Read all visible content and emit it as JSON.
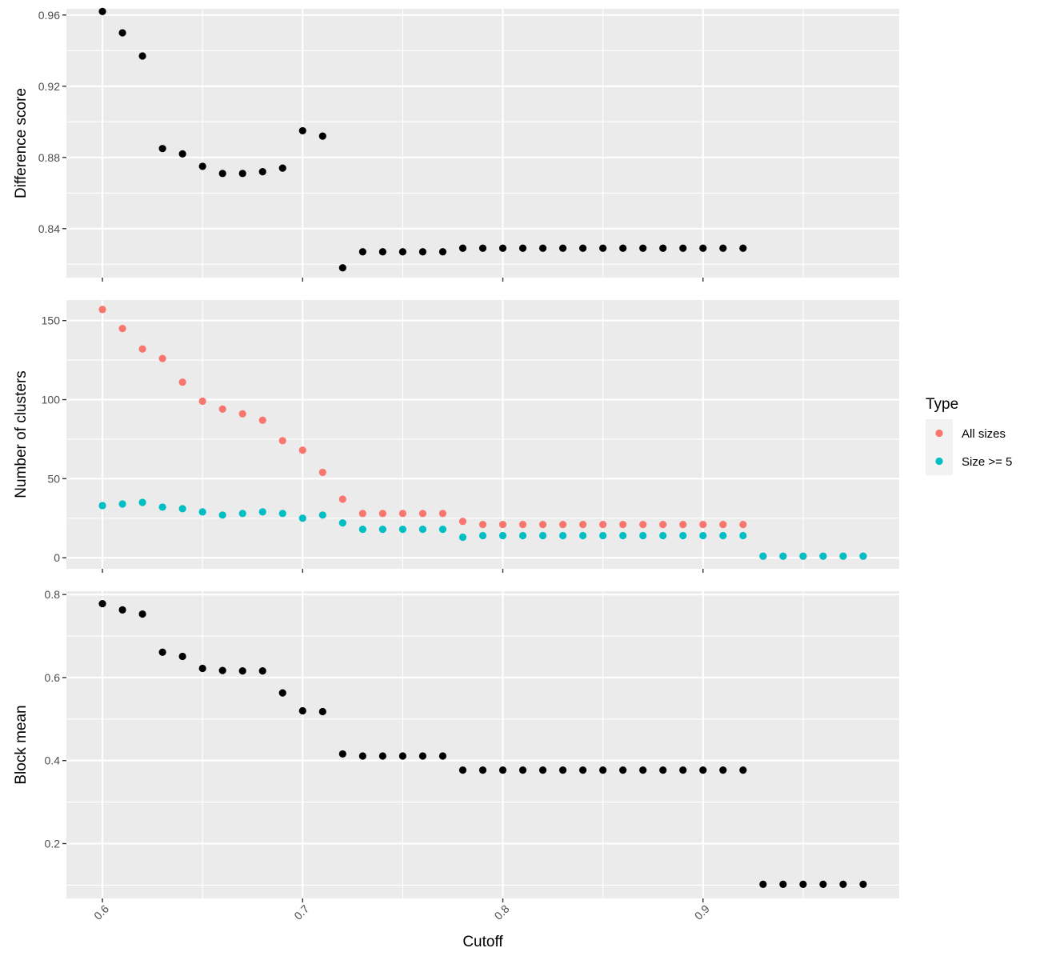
{
  "chart_data": {
    "type": "scatter",
    "xlabel": "Cutoff",
    "x_ticks": [
      "0.6",
      "0.7",
      "0.8",
      "0.9"
    ],
    "x_tick_values": [
      0.6,
      0.7,
      0.8,
      0.9
    ],
    "xlim": [
      0.582,
      0.998
    ],
    "grid": true,
    "legend_position": "right",
    "legend": {
      "title": "Type",
      "entries": [
        {
          "name": "All sizes",
          "color": "#F8766D"
        },
        {
          "name": "Size >= 5",
          "color": "#00BFC4"
        }
      ]
    },
    "panels": [
      {
        "ylabel": "Difference score",
        "ylim": [
          0.8125,
          0.9635
        ],
        "y_ticks": [
          "0.84",
          "0.88",
          "0.92",
          "0.96"
        ],
        "y_tick_values": [
          0.84,
          0.88,
          0.92,
          0.96
        ],
        "series": [
          {
            "color": "#000000",
            "points": [
              [
                0.6,
                0.962
              ],
              [
                0.61,
                0.95
              ],
              [
                0.62,
                0.937
              ],
              [
                0.63,
                0.885
              ],
              [
                0.64,
                0.882
              ],
              [
                0.65,
                0.875
              ],
              [
                0.66,
                0.871
              ],
              [
                0.67,
                0.871
              ],
              [
                0.68,
                0.872
              ],
              [
                0.69,
                0.874
              ],
              [
                0.7,
                0.895
              ],
              [
                0.71,
                0.892
              ],
              [
                0.72,
                0.818
              ],
              [
                0.73,
                0.827
              ],
              [
                0.74,
                0.827
              ],
              [
                0.75,
                0.827
              ],
              [
                0.76,
                0.827
              ],
              [
                0.77,
                0.827
              ],
              [
                0.78,
                0.829
              ],
              [
                0.79,
                0.829
              ],
              [
                0.8,
                0.829
              ],
              [
                0.81,
                0.829
              ],
              [
                0.82,
                0.829
              ],
              [
                0.83,
                0.829
              ],
              [
                0.84,
                0.829
              ],
              [
                0.85,
                0.829
              ],
              [
                0.86,
                0.829
              ],
              [
                0.87,
                0.829
              ],
              [
                0.88,
                0.829
              ],
              [
                0.89,
                0.829
              ],
              [
                0.9,
                0.829
              ],
              [
                0.91,
                0.829
              ],
              [
                0.92,
                0.829
              ]
            ]
          }
        ]
      },
      {
        "ylabel": "Number of clusters",
        "ylim": [
          -7,
          163
        ],
        "y_ticks": [
          "0",
          "50",
          "100",
          "150"
        ],
        "y_tick_values": [
          0,
          50,
          100,
          150
        ],
        "series": [
          {
            "name": "All sizes",
            "color": "#F8766D",
            "points": [
              [
                0.6,
                157
              ],
              [
                0.61,
                145
              ],
              [
                0.62,
                132
              ],
              [
                0.63,
                126
              ],
              [
                0.64,
                111
              ],
              [
                0.65,
                99
              ],
              [
                0.66,
                94
              ],
              [
                0.67,
                91
              ],
              [
                0.68,
                87
              ],
              [
                0.69,
                74
              ],
              [
                0.7,
                68
              ],
              [
                0.71,
                54
              ],
              [
                0.72,
                37
              ],
              [
                0.73,
                28
              ],
              [
                0.74,
                28
              ],
              [
                0.75,
                28
              ],
              [
                0.76,
                28
              ],
              [
                0.77,
                28
              ],
              [
                0.78,
                23
              ],
              [
                0.79,
                21
              ],
              [
                0.8,
                21
              ],
              [
                0.81,
                21
              ],
              [
                0.82,
                21
              ],
              [
                0.83,
                21
              ],
              [
                0.84,
                21
              ],
              [
                0.85,
                21
              ],
              [
                0.86,
                21
              ],
              [
                0.87,
                21
              ],
              [
                0.88,
                21
              ],
              [
                0.89,
                21
              ],
              [
                0.9,
                21
              ],
              [
                0.91,
                21
              ],
              [
                0.92,
                21
              ],
              [
                0.93,
                1
              ],
              [
                0.94,
                1
              ],
              [
                0.95,
                1
              ],
              [
                0.96,
                1
              ],
              [
                0.97,
                1
              ],
              [
                0.98,
                1
              ]
            ]
          },
          {
            "name": "Size >= 5",
            "color": "#00BFC4",
            "points": [
              [
                0.6,
                33
              ],
              [
                0.61,
                34
              ],
              [
                0.62,
                35
              ],
              [
                0.63,
                32
              ],
              [
                0.64,
                31
              ],
              [
                0.65,
                29
              ],
              [
                0.66,
                27
              ],
              [
                0.67,
                28
              ],
              [
                0.68,
                29
              ],
              [
                0.69,
                28
              ],
              [
                0.7,
                25
              ],
              [
                0.71,
                27
              ],
              [
                0.72,
                22
              ],
              [
                0.73,
                18
              ],
              [
                0.74,
                18
              ],
              [
                0.75,
                18
              ],
              [
                0.76,
                18
              ],
              [
                0.77,
                18
              ],
              [
                0.78,
                13
              ],
              [
                0.79,
                14
              ],
              [
                0.8,
                14
              ],
              [
                0.81,
                14
              ],
              [
                0.82,
                14
              ],
              [
                0.83,
                14
              ],
              [
                0.84,
                14
              ],
              [
                0.85,
                14
              ],
              [
                0.86,
                14
              ],
              [
                0.87,
                14
              ],
              [
                0.88,
                14
              ],
              [
                0.89,
                14
              ],
              [
                0.9,
                14
              ],
              [
                0.91,
                14
              ],
              [
                0.92,
                14
              ],
              [
                0.93,
                1
              ],
              [
                0.94,
                1
              ],
              [
                0.95,
                1
              ],
              [
                0.96,
                1
              ],
              [
                0.97,
                1
              ],
              [
                0.98,
                1
              ]
            ]
          }
        ]
      },
      {
        "ylabel": "Block mean",
        "ylim": [
          0.068,
          0.808
        ],
        "y_ticks": [
          "0.2",
          "0.4",
          "0.6",
          "0.8"
        ],
        "y_tick_values": [
          0.2,
          0.4,
          0.6,
          0.8
        ],
        "series": [
          {
            "color": "#000000",
            "points": [
              [
                0.6,
                0.778
              ],
              [
                0.61,
                0.763
              ],
              [
                0.62,
                0.753
              ],
              [
                0.63,
                0.661
              ],
              [
                0.64,
                0.651
              ],
              [
                0.65,
                0.622
              ],
              [
                0.66,
                0.617
              ],
              [
                0.67,
                0.616
              ],
              [
                0.68,
                0.616
              ],
              [
                0.69,
                0.563
              ],
              [
                0.7,
                0.52
              ],
              [
                0.71,
                0.518
              ],
              [
                0.72,
                0.416
              ],
              [
                0.73,
                0.411
              ],
              [
                0.74,
                0.411
              ],
              [
                0.75,
                0.411
              ],
              [
                0.76,
                0.411
              ],
              [
                0.77,
                0.411
              ],
              [
                0.78,
                0.377
              ],
              [
                0.79,
                0.377
              ],
              [
                0.8,
                0.377
              ],
              [
                0.81,
                0.377
              ],
              [
                0.82,
                0.377
              ],
              [
                0.83,
                0.377
              ],
              [
                0.84,
                0.377
              ],
              [
                0.85,
                0.377
              ],
              [
                0.86,
                0.377
              ],
              [
                0.87,
                0.377
              ],
              [
                0.88,
                0.377
              ],
              [
                0.89,
                0.377
              ],
              [
                0.9,
                0.377
              ],
              [
                0.91,
                0.377
              ],
              [
                0.92,
                0.377
              ],
              [
                0.93,
                0.102
              ],
              [
                0.94,
                0.102
              ],
              [
                0.95,
                0.102
              ],
              [
                0.96,
                0.102
              ],
              [
                0.97,
                0.102
              ],
              [
                0.98,
                0.102
              ]
            ]
          }
        ]
      }
    ]
  }
}
